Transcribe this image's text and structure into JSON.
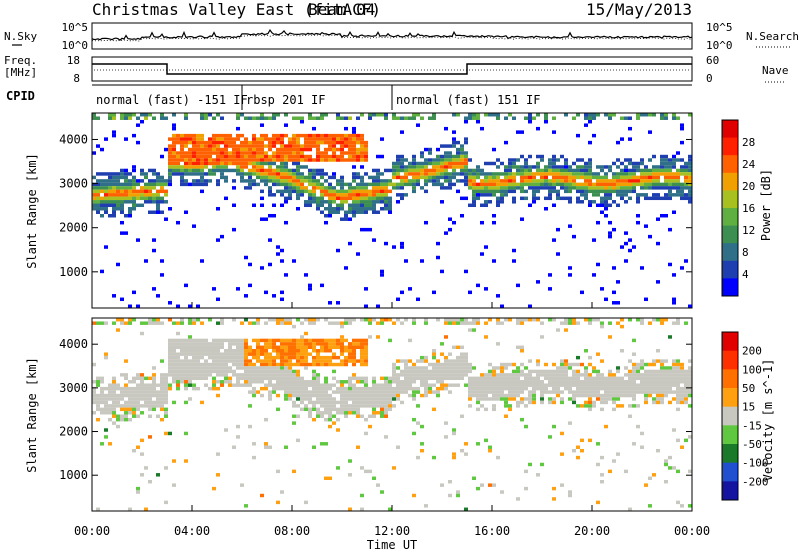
{
  "header": {
    "title": "Christmas Valley East (fitACF)",
    "beam": "Beam 04",
    "date": "15/May/2013"
  },
  "summary": {
    "nsky_label": "N.Sky",
    "nsearch_label": "N.Search",
    "noise_ticks": [
      "10^5",
      "10^0"
    ],
    "freq_label_1": "Freq.",
    "freq_label_2": "[MHz]",
    "freq_ticks": [
      "18",
      "8"
    ],
    "nave_label": "Nave",
    "nave_ticks": [
      "60",
      "0"
    ],
    "cpid_label": "CPID",
    "cpid_segments": [
      {
        "label": "normal (fast) -151 IF",
        "start_hour": 0,
        "end_hour": 6
      },
      {
        "label": "rbsp 201 IF",
        "start_hour": 6,
        "end_hour": 12
      },
      {
        "label": "normal (fast) 151 IF",
        "start_hour": 12,
        "end_hour": 24
      }
    ],
    "frequency_change_hours": [
      3.0,
      15.0
    ]
  },
  "colors": {
    "power": [
      "#0000ff",
      "#1f3fb0",
      "#2f6f88",
      "#3c8f50",
      "#5fb040",
      "#a8c020",
      "#f0a000",
      "#ff6000",
      "#ff2000",
      "#e00000"
    ],
    "velocity": [
      "#1414a0",
      "#2050d0",
      "#1a7a2a",
      "#60c840",
      "#c8c8c0",
      "#ffa010",
      "#ff7000",
      "#ff3000",
      "#e00000"
    ]
  },
  "chart_data": [
    {
      "type": "heatmap",
      "name": "power",
      "xlabel": "",
      "ylabel": "Slant Range [km]",
      "xlim": [
        0,
        24
      ],
      "ylim": [
        180,
        4600
      ],
      "yticks": [
        "1000",
        "2000",
        "3000",
        "4000"
      ],
      "colorbar_label": "Power [dB]",
      "colorbar_ticks": [
        "4",
        "8",
        "12",
        "16",
        "20",
        "24",
        "28"
      ],
      "range": [
        0,
        32
      ]
    },
    {
      "type": "heatmap",
      "name": "velocity",
      "xlabel": "Time UT",
      "ylabel": "Slant Range [km]",
      "xlim": [
        0,
        24
      ],
      "ylim": [
        180,
        4600
      ],
      "xticks": [
        "00:00",
        "04:00",
        "08:00",
        "12:00",
        "16:00",
        "20:00",
        "00:00"
      ],
      "yticks": [
        "1000",
        "2000",
        "3000",
        "4000"
      ],
      "colorbar_label": "Velocity [m s^-1]",
      "colorbar_ticks": [
        "200",
        "100",
        "50",
        "15",
        "-15",
        "-50",
        "-100",
        "-200"
      ],
      "range": [
        -250,
        250
      ]
    }
  ]
}
